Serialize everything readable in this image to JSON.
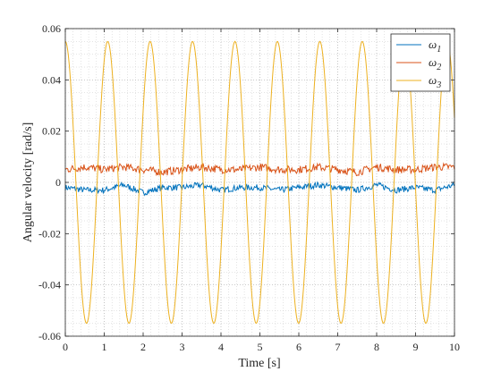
{
  "chart_data": {
    "type": "line",
    "xlabel": "Time [s]",
    "ylabel": "Angular velocity [rad/s]",
    "xlim": [
      0,
      10
    ],
    "ylim": [
      -0.06,
      0.06
    ],
    "x_ticks": [
      0,
      1,
      2,
      3,
      4,
      5,
      6,
      7,
      8,
      9,
      10
    ],
    "x_tick_labels": [
      "0",
      "1",
      "2",
      "3",
      "4",
      "5",
      "6",
      "7",
      "8",
      "9",
      "10"
    ],
    "y_ticks": [
      -0.06,
      -0.04,
      -0.02,
      0,
      0.02,
      0.04,
      0.06
    ],
    "y_tick_labels": [
      "-0.06",
      "-0.04",
      "-0.02",
      "0",
      "0.02",
      "0.04",
      "0.06"
    ],
    "grid": "dotted",
    "legend_position": "top-right",
    "series": [
      {
        "name": "ω1",
        "base": "ω",
        "subscript": "1",
        "color": "#0072bd",
        "x": [
          0,
          0.5,
          1,
          1.5,
          2,
          2.5,
          3,
          3.5,
          4,
          4.5,
          5,
          5.5,
          6,
          6.5,
          7,
          7.5,
          8,
          8.5,
          9,
          9.5,
          10
        ],
        "y": [
          -0.002,
          -0.003,
          -0.003,
          -0.001,
          -0.004,
          -0.002,
          -0.002,
          -0.001,
          -0.003,
          -0.002,
          -0.002,
          -0.003,
          -0.002,
          -0.001,
          -0.002,
          -0.003,
          -0.001,
          -0.003,
          -0.002,
          -0.003,
          -0.001
        ],
        "noise": 0.0012
      },
      {
        "name": "ω2",
        "base": "ω",
        "subscript": "2",
        "color": "#d95319",
        "x": [
          0,
          0.5,
          1,
          1.5,
          2,
          2.5,
          3,
          3.5,
          4,
          4.5,
          5,
          5.5,
          6,
          6.5,
          7,
          7.5,
          8,
          8.5,
          9,
          9.5,
          10
        ],
        "y": [
          0.005,
          0.006,
          0.005,
          0.006,
          0.005,
          0.004,
          0.005,
          0.006,
          0.005,
          0.005,
          0.006,
          0.005,
          0.005,
          0.006,
          0.005,
          0.004,
          0.006,
          0.005,
          0.005,
          0.006,
          0.006
        ],
        "noise": 0.0015
      },
      {
        "name": "ω3",
        "base": "ω",
        "subscript": "3",
        "color": "#edb120",
        "form": "cosine",
        "amplitude": 0.055,
        "period": 1.09,
        "offset": 0
      }
    ]
  }
}
